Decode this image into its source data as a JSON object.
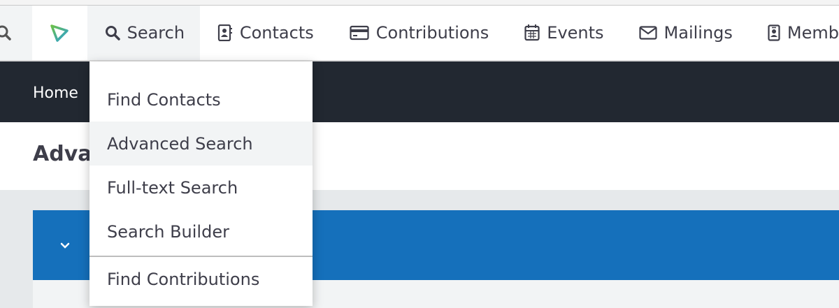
{
  "nav": {
    "items": [
      {
        "label": "Search",
        "icon": "search-icon"
      },
      {
        "label": "Contacts",
        "icon": "address-book-icon"
      },
      {
        "label": "Contributions",
        "icon": "credit-card-icon"
      },
      {
        "label": "Events",
        "icon": "calendar-icon"
      },
      {
        "label": "Mailings",
        "icon": "envelope-icon"
      },
      {
        "label": "Memb",
        "icon": "id-badge-icon"
      }
    ]
  },
  "breadcrumb": {
    "home": "Home"
  },
  "page": {
    "title": "Adva"
  },
  "dropdown": {
    "items": [
      {
        "label": "Find Contacts"
      },
      {
        "label": "Advanced Search"
      },
      {
        "label": "Full-text Search"
      },
      {
        "label": "Search Builder"
      },
      {
        "label": "Find Contributions"
      }
    ]
  },
  "colors": {
    "accent": "#1570bb",
    "dark_bar": "#222831",
    "logo_green": "#6cc04a",
    "logo_blue": "#2a9fd6"
  }
}
